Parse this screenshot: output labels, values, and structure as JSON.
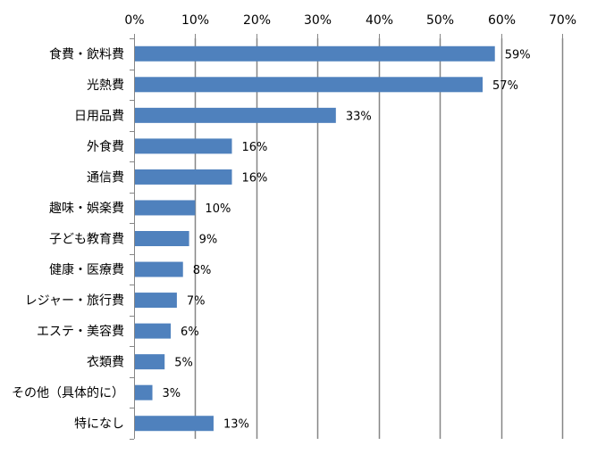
{
  "chart_data": {
    "type": "bar",
    "orientation": "horizontal",
    "categories": [
      "食費・飲料費",
      "光熱費",
      "日用品費",
      "外食費",
      "通信費",
      "趣味・娯楽費",
      "子ども教育費",
      "健康・医療費",
      "レジャー・旅行費",
      "エステ・美容費",
      "衣類費",
      "その他（具体的に）",
      "特になし"
    ],
    "values": [
      59,
      57,
      33,
      16,
      16,
      10,
      9,
      8,
      7,
      6,
      5,
      3,
      13
    ],
    "value_labels": [
      "59%",
      "57%",
      "33%",
      "16%",
      "16%",
      "10%",
      "9%",
      "8%",
      "7%",
      "6%",
      "5%",
      "3%",
      "13%"
    ],
    "xlim": [
      0,
      70
    ],
    "x_ticks": [
      0,
      10,
      20,
      30,
      40,
      50,
      60,
      70
    ],
    "x_tick_labels": [
      "0%",
      "10%",
      "20%",
      "30%",
      "40%",
      "50%",
      "60%",
      "70%"
    ],
    "x_axis_position": "top",
    "grid": true,
    "legend": "none",
    "title": "",
    "xlabel": "",
    "ylabel": "",
    "colors": {
      "bar": "#4f81bd",
      "gridline": "#868686",
      "text": "#000000"
    }
  }
}
